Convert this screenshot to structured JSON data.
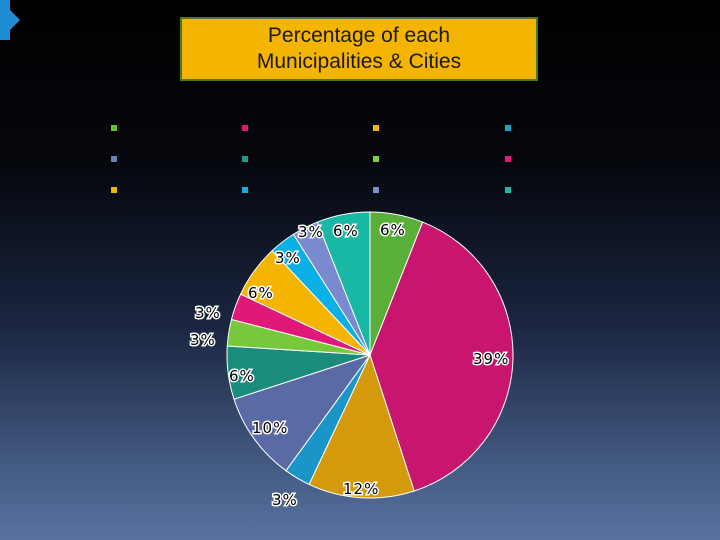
{
  "colors": {
    "title_bg": "#f5b400",
    "accent": "#1f8dd6"
  },
  "legend_marker_colors": [
    "#6abf2f",
    "#d81b6f",
    "#f5b400",
    "#1ba3c6",
    "#6a7fb5",
    "#1d9a87",
    "#7bd23b",
    "#e01d75",
    "#f5b400",
    "#12aee0",
    "#7b8ccc",
    "#1fb8a4"
  ],
  "chart_data": {
    "type": "pie",
    "title": "Percentage of each Municipalities & Cities",
    "title_lines": [
      "Percentage of each",
      "Municipalities & Cities"
    ],
    "slices": [
      {
        "value": 6,
        "label": "6%",
        "color": "#5aaf3a"
      },
      {
        "value": 39,
        "label": "39%",
        "color": "#c8156e"
      },
      {
        "value": 12,
        "label": "12%",
        "color": "#d49a0c"
      },
      {
        "value": 3,
        "label": "3%",
        "color": "#1a95c8"
      },
      {
        "value": 10,
        "label": "10%",
        "color": "#5a6aa5"
      },
      {
        "value": 6,
        "label": "6%",
        "color": "#1a8c7c"
      },
      {
        "value": 3,
        "label": "3%",
        "color": "#78c83c"
      },
      {
        "value": 3,
        "label": "3%",
        "color": "#e01878"
      },
      {
        "value": 6,
        "label": "6%",
        "color": "#f5b400"
      },
      {
        "value": 3,
        "label": "3%",
        "color": "#0ab0e6"
      },
      {
        "value": 3,
        "label": "3%",
        "color": "#7a8ad0"
      },
      {
        "value": 6,
        "label": "6%",
        "color": "#18b8a5"
      }
    ]
  }
}
